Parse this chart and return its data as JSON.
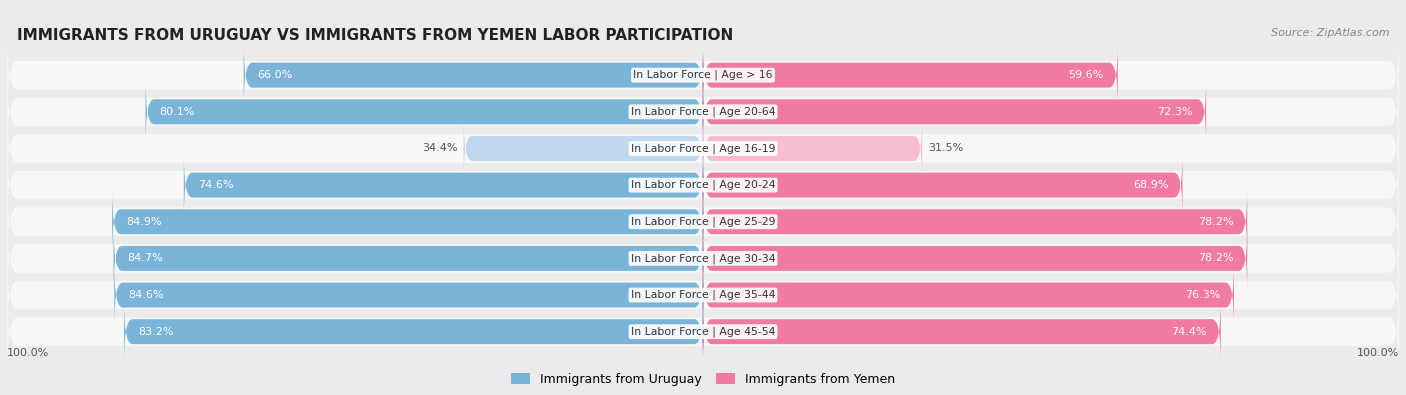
{
  "title": "IMMIGRANTS FROM URUGUAY VS IMMIGRANTS FROM YEMEN LABOR PARTICIPATION",
  "source": "Source: ZipAtlas.com",
  "categories": [
    "In Labor Force | Age > 16",
    "In Labor Force | Age 20-64",
    "In Labor Force | Age 16-19",
    "In Labor Force | Age 20-24",
    "In Labor Force | Age 25-29",
    "In Labor Force | Age 30-34",
    "In Labor Force | Age 35-44",
    "In Labor Force | Age 45-54"
  ],
  "uruguay_values": [
    66.0,
    80.1,
    34.4,
    74.6,
    84.9,
    84.7,
    84.6,
    83.2
  ],
  "yemen_values": [
    59.6,
    72.3,
    31.5,
    68.9,
    78.2,
    78.2,
    76.3,
    74.4
  ],
  "uruguay_color": "#7ab4d8",
  "uruguay_color_light": "#c0d8ed",
  "yemen_color": "#f07aa0",
  "yemen_color_light": "#f8bdd0",
  "bar_height": 0.68,
  "background_color": "#ebebeb",
  "row_bg_color": "#f7f7f7",
  "row_bg_even": "#f0f0f0",
  "label_fontsize": 8.0,
  "cat_fontsize": 7.8,
  "title_fontsize": 11.0,
  "source_fontsize": 8.0,
  "legend_fontsize": 9.0,
  "max_value": 100.0,
  "light_rows": [
    2
  ]
}
